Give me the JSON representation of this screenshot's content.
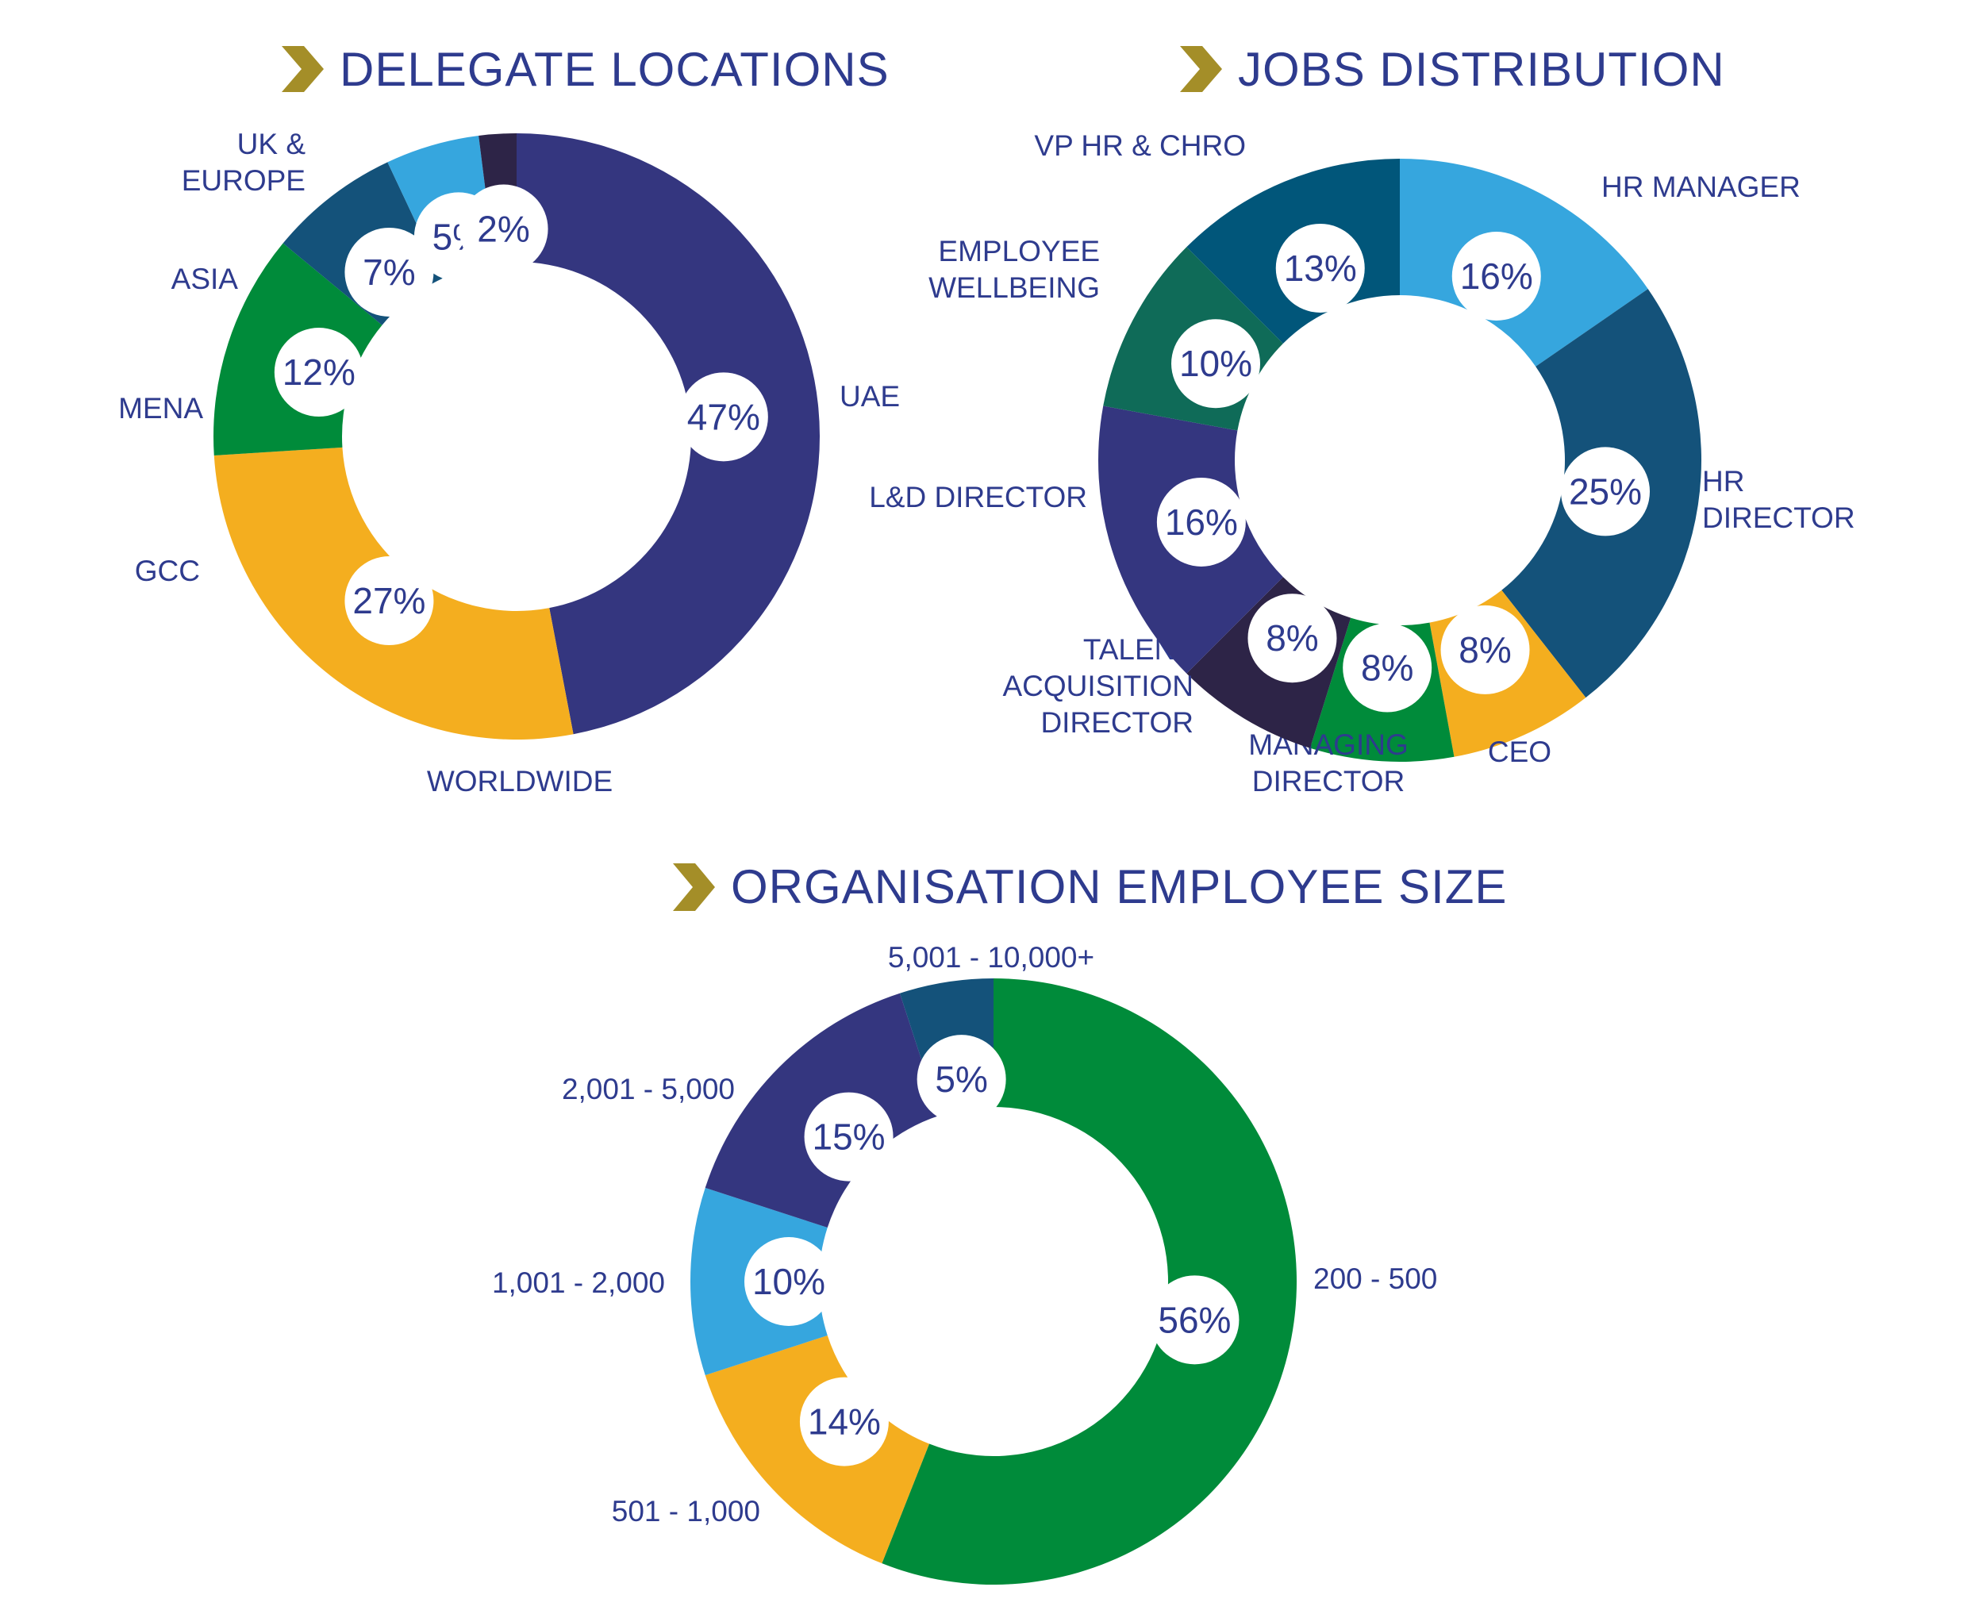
{
  "colors": {
    "navy_purple": "#34367f",
    "gold": "#f4ae1f",
    "green": "#008b3a",
    "dark_teal": "#14527a",
    "sky_blue": "#36a6de",
    "dark_plum": "#2d2447",
    "teal_blue": "#01567a",
    "forest_teal": "#0f6b58",
    "heading_blue": "#2e3b8e",
    "chevron_gold": "#a48e28"
  },
  "chart_data": [
    {
      "type": "pie",
      "style": "donut",
      "title": "DELEGATE LOCATIONS",
      "start": "top",
      "direction": "clockwise",
      "slices": [
        {
          "label": [
            "UAE"
          ],
          "value": 47,
          "pct_text": "47%",
          "color": "#34367f"
        },
        {
          "label": [
            "WORLDWIDE"
          ],
          "value": 27,
          "pct_text": "27%",
          "color": "#f4ae1f"
        },
        {
          "label": [
            "GCC"
          ],
          "value": 12,
          "pct_text": "12%",
          "color": "#008b3a"
        },
        {
          "label": [
            "MENA"
          ],
          "value": 7,
          "pct_text": "7%",
          "color": "#14527a"
        },
        {
          "label": [
            "ASIA"
          ],
          "value": 5,
          "pct_text": "5%",
          "color": "#36a6de"
        },
        {
          "label": [
            "UK &",
            "EUROPE"
          ],
          "value": 2,
          "pct_text": "2%",
          "color": "#2d2447"
        }
      ]
    },
    {
      "type": "pie",
      "style": "donut",
      "title": "JOBS DISTRIBUTION",
      "start": "top",
      "direction": "clockwise",
      "slices": [
        {
          "label": [
            "HR MANAGER"
          ],
          "value": 16,
          "pct_text": "16%",
          "color": "#36a6de"
        },
        {
          "label": [
            "HR",
            "DIRECTOR"
          ],
          "value": 25,
          "pct_text": "25%",
          "color": "#14527a"
        },
        {
          "label": [
            "CEO"
          ],
          "value": 8,
          "pct_text": "8%",
          "color": "#f4ae1f"
        },
        {
          "label": [
            "MANAGING",
            "DIRECTOR"
          ],
          "value": 8,
          "pct_text": "8%",
          "color": "#008b3a"
        },
        {
          "label": [
            "TALENT",
            "ACQUISITION",
            "DIRECTOR"
          ],
          "value": 8,
          "pct_text": "8%",
          "color": "#2d2447"
        },
        {
          "label": [
            "L&D DIRECTOR"
          ],
          "value": 16,
          "pct_text": "16%",
          "color": "#34367f"
        },
        {
          "label": [
            "EMPLOYEE",
            "WELLBEING"
          ],
          "value": 10,
          "pct_text": "10%",
          "color": "#0f6b58"
        },
        {
          "label": [
            "VP HR & CHRO"
          ],
          "value": 13,
          "pct_text": "13%",
          "color": "#01567a"
        }
      ]
    },
    {
      "type": "pie",
      "style": "donut",
      "title": "ORGANISATION EMPLOYEE SIZE",
      "start": "top",
      "direction": "clockwise",
      "slices": [
        {
          "label": [
            "200 - 500"
          ],
          "value": 56,
          "pct_text": "56%",
          "color": "#008b3a"
        },
        {
          "label": [
            "501 - 1,000"
          ],
          "value": 14,
          "pct_text": "14%",
          "color": "#f4ae1f"
        },
        {
          "label": [
            "1,001 - 2,000"
          ],
          "value": 10,
          "pct_text": "10%",
          "color": "#36a6de"
        },
        {
          "label": [
            "2,001 - 5,000"
          ],
          "value": 15,
          "pct_text": "15%",
          "color": "#34367f"
        },
        {
          "label": [
            "5,001 - 10,000+"
          ],
          "value": 5,
          "pct_text": "5%",
          "color": "#14527a"
        }
      ]
    }
  ]
}
